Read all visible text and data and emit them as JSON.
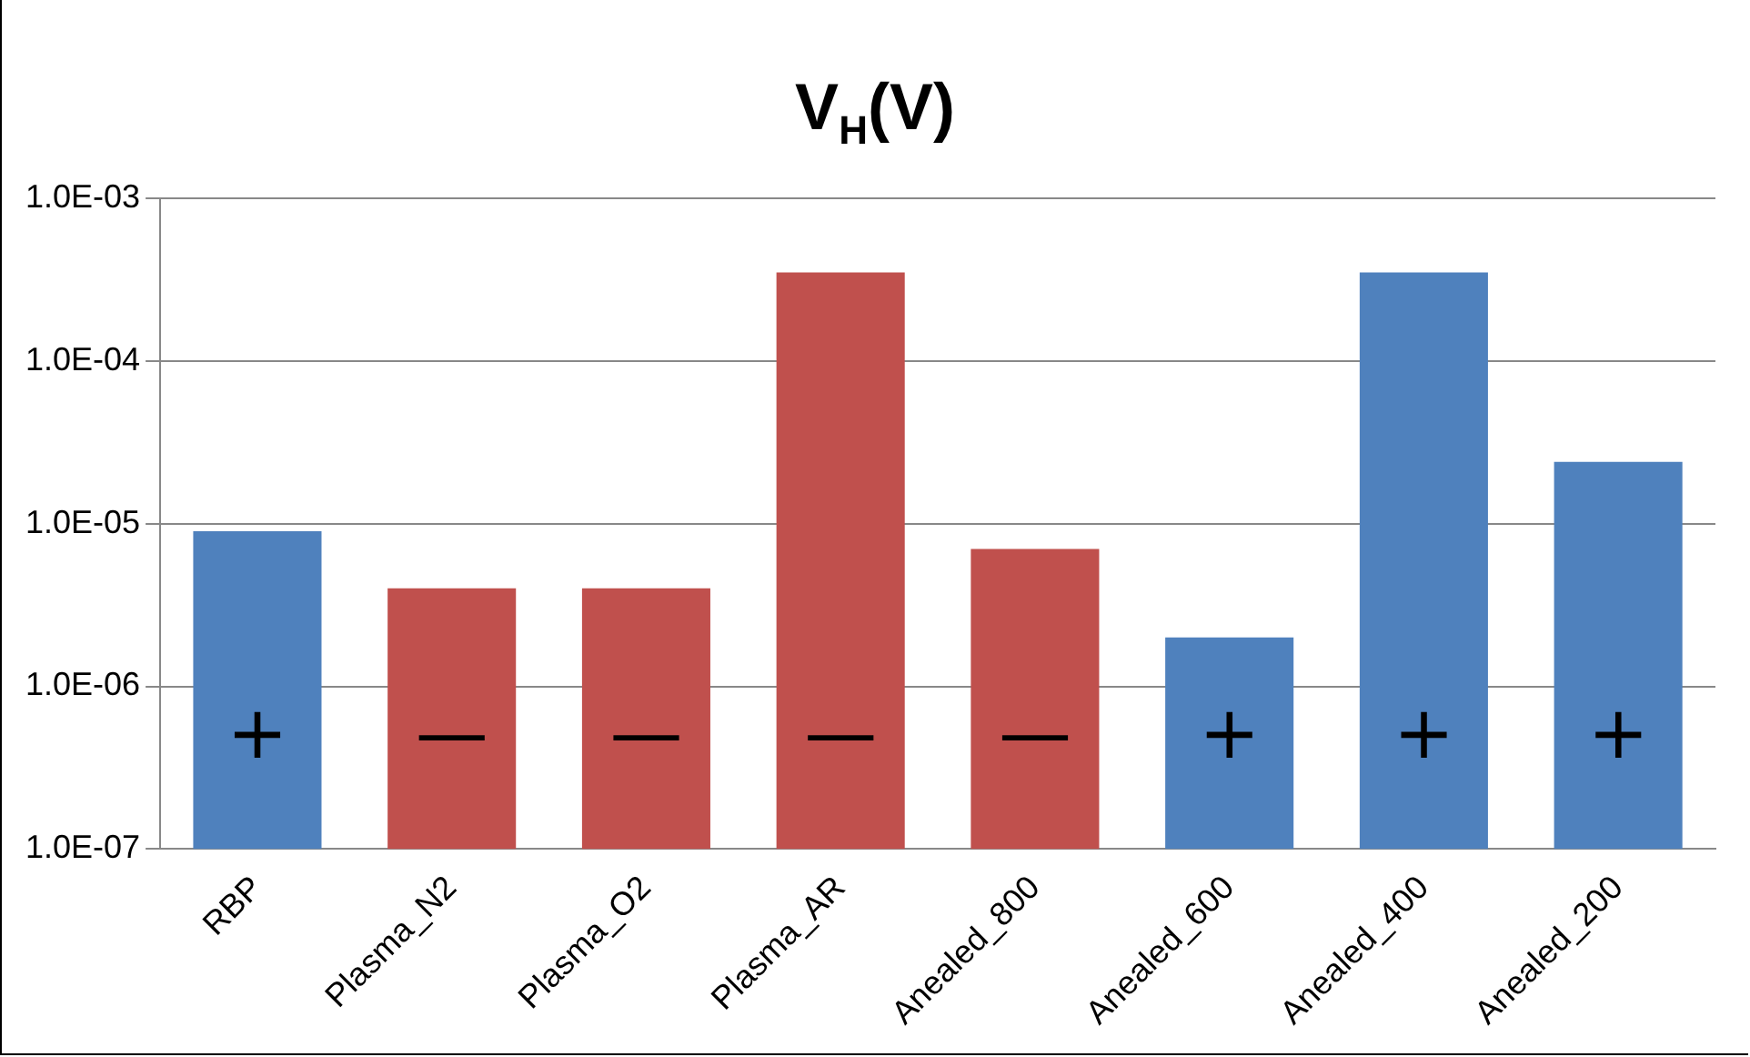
{
  "chart_data": {
    "type": "bar",
    "title": "V$_{H}$(V)",
    "categories": [
      "RBP",
      "Plasma_N2",
      "Plasma_O2",
      "Plasma_AR",
      "Anealed_800",
      "Anealed_600",
      "Anealed_400",
      "Anealed_200"
    ],
    "values": [
      9e-06,
      4e-06,
      4e-06,
      0.00035,
      7e-06,
      2e-06,
      0.00035,
      2.4e-05
    ],
    "colors": [
      "#4f81bd",
      "#c0504d",
      "#c0504d",
      "#c0504d",
      "#c0504d",
      "#4f81bd",
      "#4f81bd",
      "#4f81bd"
    ],
    "log": "y",
    "ylim": [
      1e-07,
      0.001
    ],
    "yticks": [
      {
        "value": 1e-07,
        "label": "1.0E-07"
      },
      {
        "value": 1e-06,
        "label": "1.0E-06"
      },
      {
        "value": 1e-05,
        "label": "1.0E-05"
      },
      {
        "value": 0.0001,
        "label": "1.0E-04"
      },
      {
        "value": 0.001,
        "label": "1.0E-03"
      }
    ],
    "grid": "y",
    "legend": false,
    "annotations": [
      "+",
      "—",
      "—",
      "—",
      "—",
      "+",
      "+",
      "+"
    ]
  }
}
